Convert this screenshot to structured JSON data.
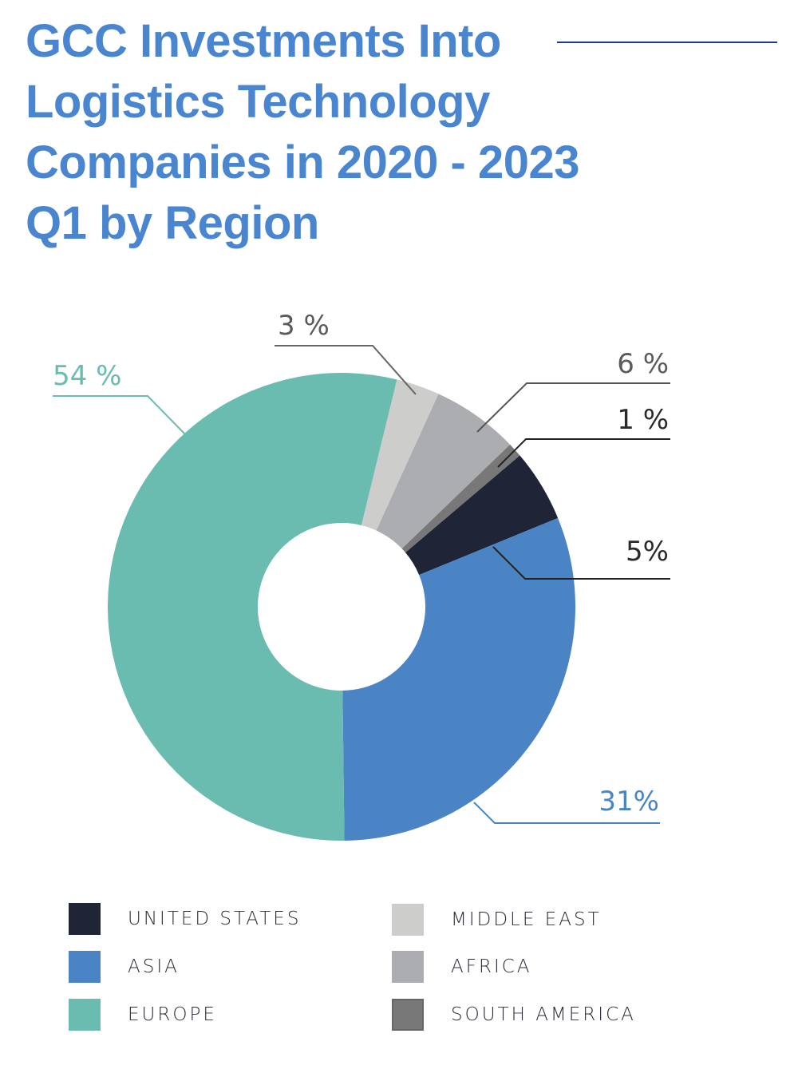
{
  "chart_data": {
    "type": "pie",
    "variant": "donut",
    "title": "GCC Investments Into Logistics Technology Companies in 2020 - 2023 Q1 by Region",
    "slices": [
      {
        "name": "MIDDLE EAST",
        "value": 3,
        "label": "3 %",
        "color": "#cdcdcb",
        "label_color": "#5a5a5a"
      },
      {
        "name": "AFRICA",
        "value": 6,
        "label": "6 %",
        "color": "#acadb0",
        "label_color": "#5a5a5a"
      },
      {
        "name": "SOUTH AMERICA",
        "value": 1,
        "label": "1 %",
        "color": "#787878",
        "label_color": "#2a2a2a"
      },
      {
        "name": "UNITED STATES",
        "value": 5,
        "label": "5%",
        "color": "#1f2436",
        "label_color": "#2a2a2a"
      },
      {
        "name": "ASIA",
        "value": 31,
        "label": "31%",
        "color": "#4a84c4",
        "label_color": "#4a84c4"
      },
      {
        "name": "EUROPE",
        "value": 54,
        "label": "54 %",
        "color": "#6abcb0",
        "label_color": "#6abcb0"
      }
    ],
    "legend": [
      "UNITED STATES",
      "ASIA",
      "EUROPE",
      "MIDDLE EAST",
      "AFRICA",
      "SOUTH AMERICA"
    ],
    "legend_placement": "bottom"
  }
}
